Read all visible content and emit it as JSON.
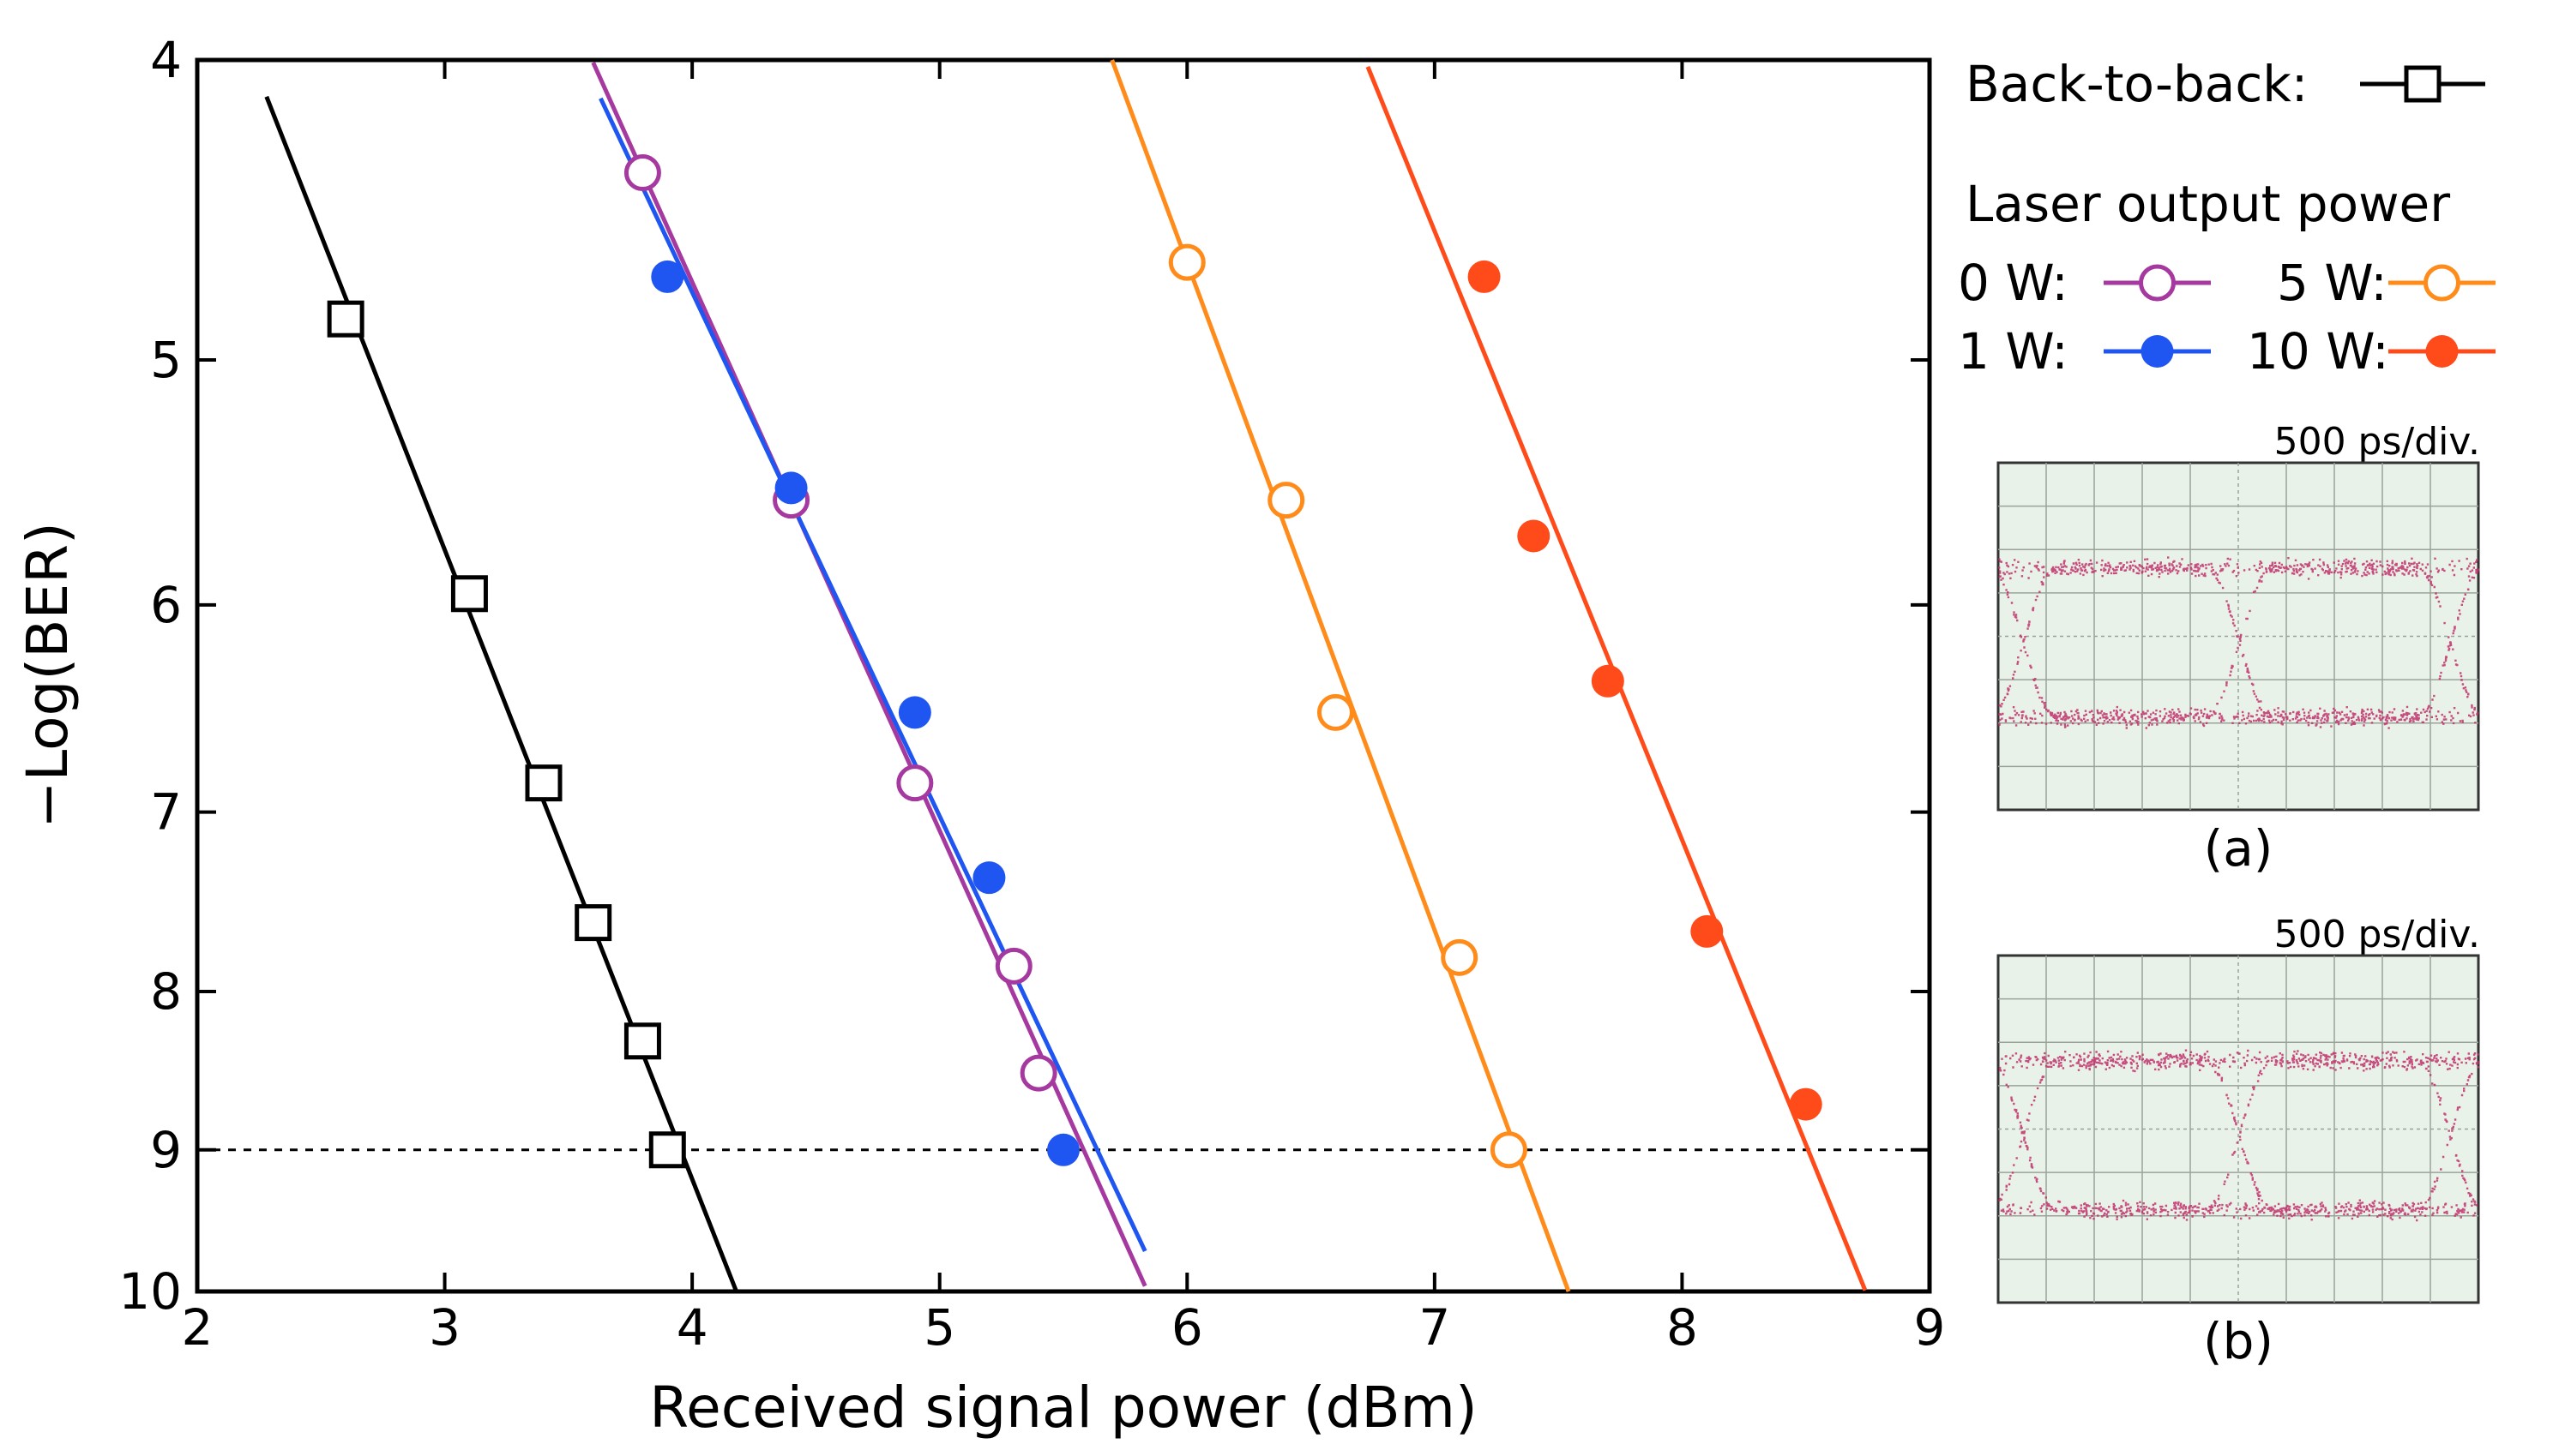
{
  "chart_data": {
    "type": "scatter",
    "title": "",
    "xlabel": "Received signal power (dBm)",
    "ylabel": "−Log(BER)",
    "xlim": [
      2,
      9
    ],
    "ylim": [
      4,
      10
    ],
    "y_scale": "log(-log BER)",
    "x_ticks": [
      2,
      3,
      4,
      5,
      6,
      7,
      8,
      9
    ],
    "y_ticks": [
      4,
      5,
      6,
      7,
      8,
      9,
      10
    ],
    "reference_line": {
      "y": 9,
      "style": "dotted"
    },
    "series": [
      {
        "name": "Back-to-back",
        "legend_label": "Back-to-back:",
        "color": "#000000",
        "marker": "open-square",
        "x": [
          2.6,
          3.1,
          3.4,
          3.6,
          3.8,
          3.9
        ],
        "y": [
          4.85,
          5.95,
          6.85,
          7.6,
          8.3,
          9.0
        ],
        "fit_x": [
          2.28,
          4.19
        ]
      },
      {
        "name": "0 W",
        "legend_label": "0 W:",
        "color": "#a6399f",
        "marker": "open-circle",
        "x": [
          3.8,
          4.4,
          4.9,
          5.3,
          5.4
        ],
        "y": [
          4.35,
          5.55,
          6.85,
          7.85,
          8.5
        ],
        "fit_x": [
          3.6,
          5.83
        ]
      },
      {
        "name": "1 W",
        "legend_label": "1 W:",
        "color": "#1f55f0",
        "marker": "filled-circle",
        "x": [
          3.9,
          4.4,
          4.9,
          5.2,
          5.5
        ],
        "y": [
          4.7,
          5.5,
          6.5,
          7.35,
          9.0
        ],
        "fit_x": [
          3.63,
          5.83
        ]
      },
      {
        "name": "5 W",
        "legend_label": "5 W:",
        "color": "#ff8c1a",
        "marker": "open-circle",
        "x": [
          6.0,
          6.4,
          6.6,
          7.1,
          7.3
        ],
        "y": [
          4.65,
          5.55,
          6.5,
          7.8,
          9.0
        ],
        "fit_x": [
          5.63,
          7.65
        ]
      },
      {
        "name": "10 W",
        "legend_label": "10 W:",
        "color": "#ff4a1a",
        "marker": "filled-circle",
        "x": [
          7.2,
          7.4,
          7.7,
          8.1,
          8.5
        ],
        "y": [
          4.7,
          5.7,
          6.35,
          7.65,
          8.7
        ],
        "fit_x": [
          6.73,
          8.74
        ]
      }
    ],
    "legend": {
      "position": "right",
      "group_title": "Laser output power"
    },
    "insets": [
      {
        "caption": "(a)",
        "scale": "500 ps/div."
      },
      {
        "caption": "(b)",
        "scale": "500 ps/div."
      }
    ]
  },
  "colors": {
    "eye_trace": "#c0306a",
    "eye_grid": "#9aa39a",
    "eye_background": "#e9f2e9"
  }
}
